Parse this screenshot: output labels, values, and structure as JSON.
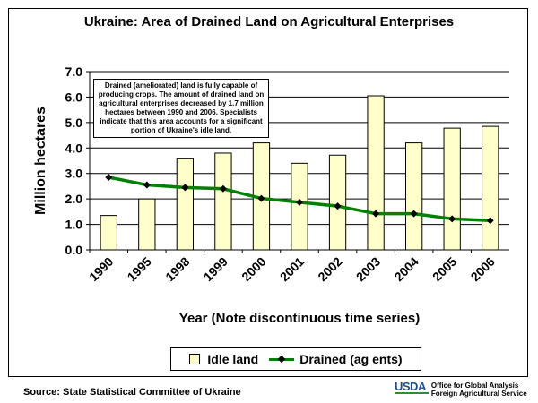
{
  "chart_data": {
    "type": "bar",
    "title": "Ukraine:  Area of Drained Land on Agricultural Enterprises",
    "xlabel": "Year (Note discontinuous time series)",
    "ylabel": "Million hectares",
    "ylim": [
      0,
      7
    ],
    "yticks": [
      "0.0",
      "1.0",
      "2.0",
      "3.0",
      "4.0",
      "5.0",
      "6.0",
      "7.0"
    ],
    "categories": [
      "1990",
      "1995",
      "1998",
      "1999",
      "2000",
      "2001",
      "2002",
      "2003",
      "2004",
      "2005",
      "2006"
    ],
    "series": [
      {
        "name": "Idle land",
        "type": "bar",
        "color": "#ffffcc",
        "values": [
          1.35,
          2.0,
          3.6,
          3.8,
          4.2,
          3.4,
          3.72,
          6.05,
          4.2,
          4.78,
          4.85
        ]
      },
      {
        "name": "Drained (ag ents)",
        "type": "line",
        "color": "#008000",
        "values": [
          2.85,
          2.55,
          2.45,
          2.4,
          2.02,
          1.87,
          1.72,
          1.42,
          1.42,
          1.22,
          1.15
        ]
      }
    ],
    "grid": true,
    "legend_position": "bottom",
    "annotation": "Drained (ameliorated) land is fully capable of producing crops.  The amount of drained land on agricultural enterprises decreased by 1.7 million hectares between 1990 and 2006.  Specialists indicate that this area accounts for a significant portion of Ukraine's idle land."
  },
  "footer": {
    "source": "Source:  State Statistical Committee of Ukraine",
    "logo_text": "USDA",
    "agency_line1": "Office for Global Analysis",
    "agency_line2": "Foreign Agricultural Service"
  },
  "colors": {
    "bar_fill": "#ffffcc",
    "line": "#008000",
    "marker": "#000000",
    "plot_background": "#ffffff"
  }
}
